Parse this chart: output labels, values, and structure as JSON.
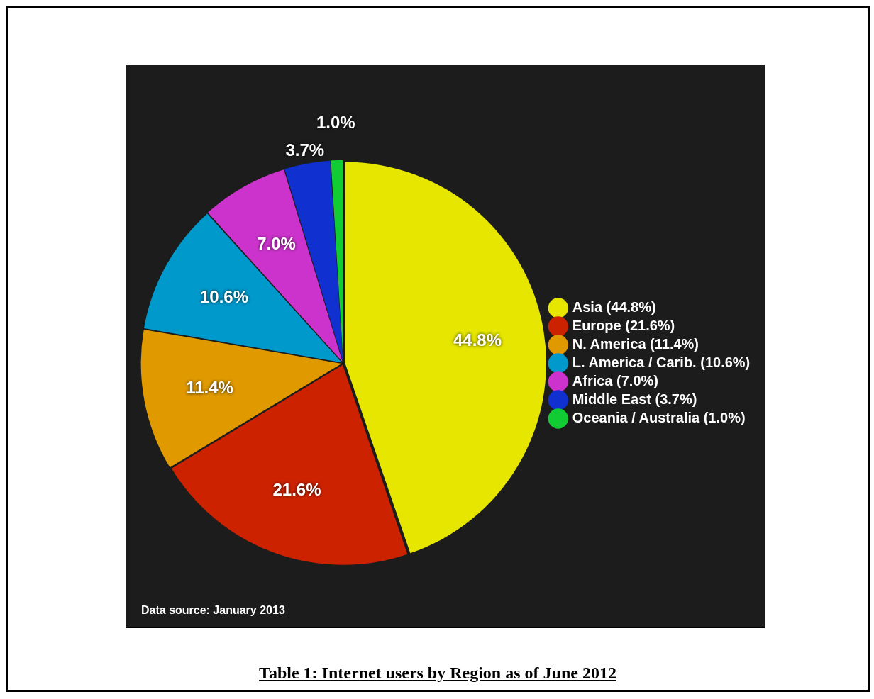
{
  "chart_data": {
    "type": "pie",
    "title": "Table 1:  Internet users by Region as of June 2012",
    "categories": [
      "Asia (44.8%)",
      "Europe (21.6%)",
      "N. America (11.4%)",
      "L. America / Carib. (10.6%)",
      "Africa (7.0%)",
      "Middle East (3.7%)",
      "Oceania / Australia (1.0%)"
    ],
    "values": [
      44.8,
      21.6,
      11.4,
      10.6,
      7.0,
      3.7,
      1.0
    ],
    "value_labels": [
      "44.8%",
      "21.6%",
      "11.4%",
      "10.6%",
      "7.0%",
      "3.7%",
      "1.0%"
    ],
    "colors": [
      "#e6e600",
      "#cc2200",
      "#e09a00",
      "#0099cc",
      "#cc33cc",
      "#1030d0",
      "#11cc33"
    ],
    "legend": "right",
    "annotations": [
      "Data source: January 2013"
    ]
  }
}
